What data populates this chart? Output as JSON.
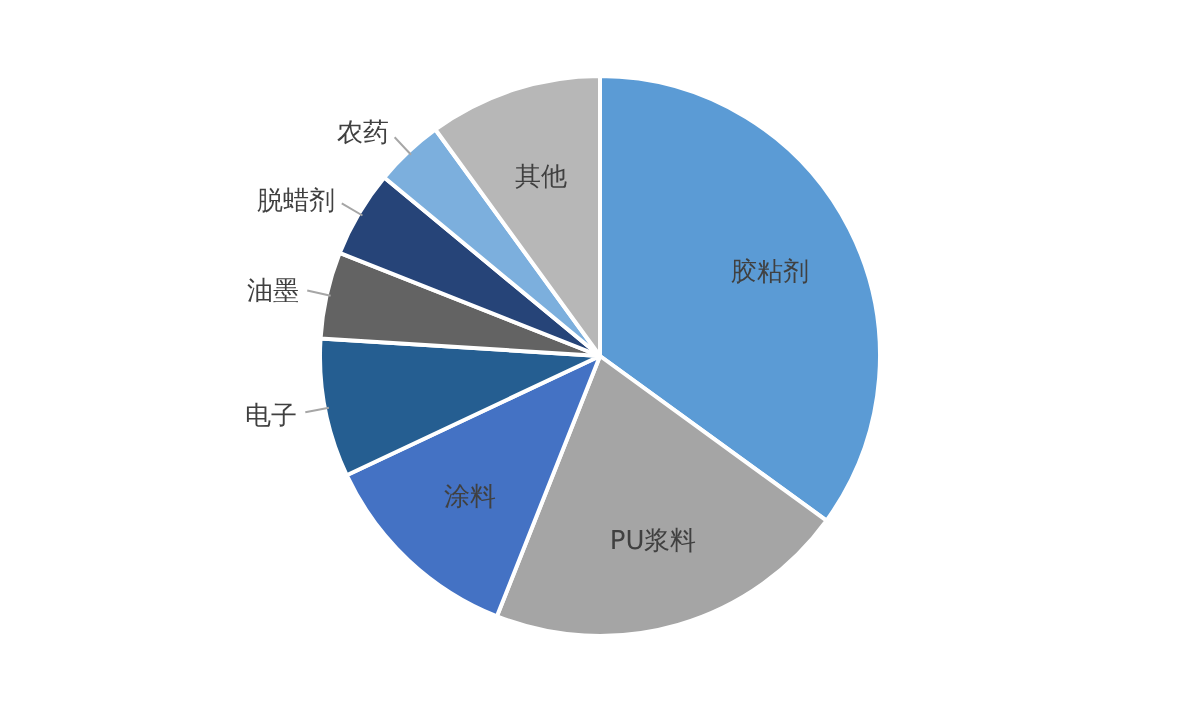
{
  "chart_data": {
    "type": "pie",
    "categories": [
      "胶粘剂",
      "PU浆料",
      "涂料",
      "电子",
      "油墨",
      "脱蜡剂",
      "农药",
      "其他"
    ],
    "values": [
      35,
      21,
      12,
      8,
      5,
      5,
      4,
      10
    ],
    "colors": [
      "#5b9bd5",
      "#a5a5a5",
      "#4472c4",
      "#255e91",
      "#636363",
      "#264478",
      "#7cafdd",
      "#b7b7b7"
    ]
  }
}
